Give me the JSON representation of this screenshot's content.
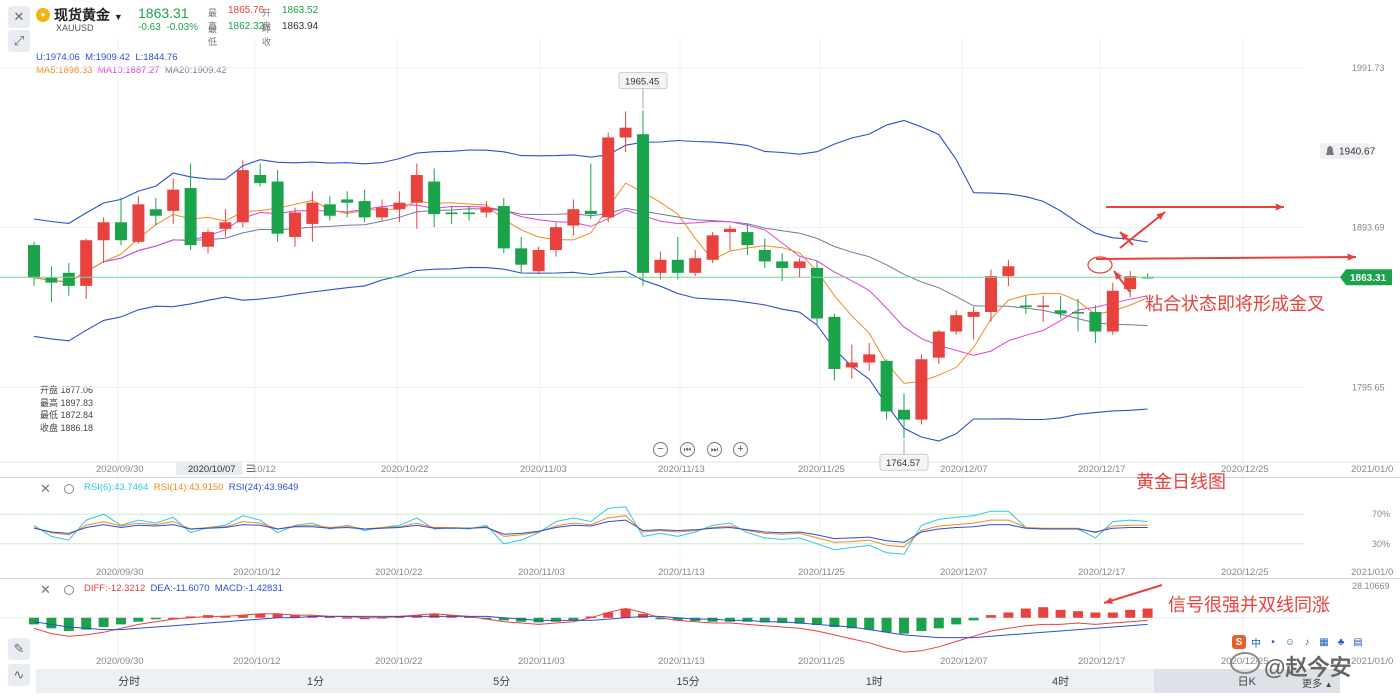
{
  "header": {
    "symbol_name": "现货黄金",
    "symbol_code": "XAUUSD",
    "price": "1863.31",
    "change": "-0.63",
    "change_pct": "-0.03%",
    "high_label": "最高",
    "high": "1865.76",
    "open_label": "开盘",
    "open": "1863.52",
    "low_label": "最低",
    "low": "1862.32",
    "prev_close_label": "昨收",
    "prev_close": "1863.94"
  },
  "indicators": {
    "boll": {
      "u": "U:1974.06",
      "m": "M:1909.42",
      "l": "L:1844.76"
    },
    "ma5": "MA5:1898.33",
    "ma10": "MA10:1887.27",
    "ma20": "MA20:1909.42",
    "rsi6": "RSI(6):43.7464",
    "rsi14": "RSI(14):43.9150",
    "rsi24": "RSI(24):43.9649",
    "diff": "DIFF:-12.3212",
    "dea": "DEA:-11.6070",
    "macd": "MACD:-1.42831"
  },
  "ohlc_box": {
    "open": "开盘 1877.06",
    "high": "最高 1897.83",
    "low": "最低 1872.84",
    "close": "收盘 1886.18"
  },
  "price_axis": {
    "ticks": [
      {
        "value": 1991.73,
        "label": "1991.73"
      },
      {
        "value": 1893.69,
        "label": "1893.69"
      },
      {
        "value": 1795.65,
        "label": "1795.65"
      }
    ],
    "alert_label": "1940.67",
    "current_label": "1863.31"
  },
  "markers": {
    "peak": "1965.45",
    "trough": "1764.57"
  },
  "date_axis": {
    "labels": [
      "2020/09/30",
      "2020/10/07",
      "10/12",
      "2020/10/22",
      "2020/11/03",
      "2020/11/13",
      "2020/11/25",
      "2020/12/07",
      "2020/12/17",
      "2020/12/25",
      "2021/01/0"
    ],
    "sub_labels": [
      "2020/09/30",
      "2020/10/12",
      "2020/10/22",
      "2020/11/03",
      "2020/11/13",
      "2020/11/25",
      "2020/12/07",
      "2020/12/17",
      "2020/12/25",
      "2021/01/0"
    ]
  },
  "rsi_axis": {
    "upper": "70%",
    "lower": "30%"
  },
  "macd_axis": {
    "top": "28.10669"
  },
  "timeframes": [
    "分时",
    "1分",
    "5分",
    "15分",
    "1时",
    "4时",
    "日K"
  ],
  "timeframe_active": "日K",
  "more_label": "更多",
  "annotations": {
    "golden_cross": "粘合状态即将形成金叉",
    "daily_chart": "黄金日线图",
    "signal": "信号很强并双线同涨"
  },
  "watermark": "@赵今安",
  "colors": {
    "up": "#e8423f",
    "down": "#1aa34a",
    "boll": "#2c4fd6",
    "ma5": "#f28a1e",
    "ma10": "#e040d9",
    "ma20": "#6f7d9a",
    "annot": "#e8403a"
  },
  "chart_data": {
    "type": "candlestick",
    "start_date": "2020-09-24",
    "candles": [
      {
        "o": 1883,
        "h": 1885,
        "l": 1858,
        "c": 1863
      },
      {
        "o": 1863,
        "h": 1870,
        "l": 1848,
        "c": 1860
      },
      {
        "o": 1866,
        "h": 1872,
        "l": 1852,
        "c": 1858
      },
      {
        "o": 1858,
        "h": 1887,
        "l": 1850,
        "c": 1886
      },
      {
        "o": 1886,
        "h": 1900,
        "l": 1872,
        "c": 1897
      },
      {
        "o": 1897,
        "h": 1912,
        "l": 1883,
        "c": 1886
      },
      {
        "o": 1885,
        "h": 1913,
        "l": 1884,
        "c": 1908
      },
      {
        "o": 1905,
        "h": 1912,
        "l": 1895,
        "c": 1901
      },
      {
        "o": 1904,
        "h": 1924,
        "l": 1896,
        "c": 1917
      },
      {
        "o": 1918,
        "h": 1933,
        "l": 1880,
        "c": 1883
      },
      {
        "o": 1882,
        "h": 1893,
        "l": 1878,
        "c": 1891
      },
      {
        "o": 1893,
        "h": 1905,
        "l": 1888,
        "c": 1897
      },
      {
        "o": 1897,
        "h": 1935,
        "l": 1894,
        "c": 1929
      },
      {
        "o": 1926,
        "h": 1933,
        "l": 1919,
        "c": 1921
      },
      {
        "o": 1922,
        "h": 1929,
        "l": 1885,
        "c": 1890
      },
      {
        "o": 1888,
        "h": 1906,
        "l": 1882,
        "c": 1903
      },
      {
        "o": 1896,
        "h": 1916,
        "l": 1885,
        "c": 1909
      },
      {
        "o": 1908,
        "h": 1913,
        "l": 1898,
        "c": 1901
      },
      {
        "o": 1911,
        "h": 1916,
        "l": 1900,
        "c": 1909
      },
      {
        "o": 1910,
        "h": 1917,
        "l": 1897,
        "c": 1900
      },
      {
        "o": 1900,
        "h": 1911,
        "l": 1898,
        "c": 1906
      },
      {
        "o": 1905,
        "h": 1916,
        "l": 1897,
        "c": 1909
      },
      {
        "o": 1909,
        "h": 1933,
        "l": 1893,
        "c": 1926
      },
      {
        "o": 1922,
        "h": 1930,
        "l": 1894,
        "c": 1902
      },
      {
        "o": 1903,
        "h": 1907,
        "l": 1896,
        "c": 1902
      },
      {
        "o": 1903,
        "h": 1907,
        "l": 1898,
        "c": 1902
      },
      {
        "o": 1903,
        "h": 1910,
        "l": 1900,
        "c": 1906
      },
      {
        "o": 1907,
        "h": 1912,
        "l": 1878,
        "c": 1881
      },
      {
        "o": 1881,
        "h": 1888,
        "l": 1866,
        "c": 1871
      },
      {
        "o": 1867,
        "h": 1882,
        "l": 1866,
        "c": 1880
      },
      {
        "o": 1880,
        "h": 1897,
        "l": 1876,
        "c": 1894
      },
      {
        "o": 1895,
        "h": 1911,
        "l": 1889,
        "c": 1905
      },
      {
        "o": 1904,
        "h": 1933,
        "l": 1899,
        "c": 1902
      },
      {
        "o": 1900,
        "h": 1952,
        "l": 1897,
        "c": 1949
      },
      {
        "o": 1949,
        "h": 1965,
        "l": 1940,
        "c": 1955
      },
      {
        "o": 1951,
        "h": 1965.45,
        "l": 1858,
        "c": 1866
      },
      {
        "o": 1866,
        "h": 1879,
        "l": 1862,
        "c": 1874
      },
      {
        "o": 1874,
        "h": 1888,
        "l": 1862,
        "c": 1866
      },
      {
        "o": 1866,
        "h": 1880,
        "l": 1864,
        "c": 1875
      },
      {
        "o": 1874,
        "h": 1891,
        "l": 1872,
        "c": 1889
      },
      {
        "o": 1891,
        "h": 1895,
        "l": 1880,
        "c": 1893
      },
      {
        "o": 1891,
        "h": 1896,
        "l": 1877,
        "c": 1883
      },
      {
        "o": 1880,
        "h": 1887,
        "l": 1869,
        "c": 1873
      },
      {
        "o": 1873,
        "h": 1878,
        "l": 1861,
        "c": 1869
      },
      {
        "o": 1869,
        "h": 1875,
        "l": 1863,
        "c": 1873
      },
      {
        "o": 1869,
        "h": 1873,
        "l": 1834,
        "c": 1838
      },
      {
        "o": 1839,
        "h": 1841,
        "l": 1800,
        "c": 1807
      },
      {
        "o": 1808,
        "h": 1822,
        "l": 1801,
        "c": 1811
      },
      {
        "o": 1811,
        "h": 1823,
        "l": 1806,
        "c": 1816
      },
      {
        "o": 1812,
        "h": 1813,
        "l": 1776,
        "c": 1781
      },
      {
        "o": 1782,
        "h": 1792,
        "l": 1764.57,
        "c": 1776
      },
      {
        "o": 1776,
        "h": 1816,
        "l": 1773,
        "c": 1813
      },
      {
        "o": 1814,
        "h": 1831,
        "l": 1810,
        "c": 1830
      },
      {
        "o": 1830,
        "h": 1843,
        "l": 1828,
        "c": 1840
      },
      {
        "o": 1839,
        "h": 1845,
        "l": 1825,
        "c": 1842
      },
      {
        "o": 1842,
        "h": 1868,
        "l": 1836,
        "c": 1864
      },
      {
        "o": 1864,
        "h": 1874,
        "l": 1858,
        "c": 1870
      },
      {
        "o": 1846,
        "h": 1852,
        "l": 1841,
        "c": 1845
      },
      {
        "o": 1845,
        "h": 1852,
        "l": 1836,
        "c": 1846
      },
      {
        "o": 1843,
        "h": 1852,
        "l": 1838,
        "c": 1841
      },
      {
        "o": 1842,
        "h": 1850,
        "l": 1830,
        "c": 1841
      },
      {
        "o": 1842,
        "h": 1846,
        "l": 1823,
        "c": 1830
      },
      {
        "o": 1830,
        "h": 1860,
        "l": 1828,
        "c": 1855
      },
      {
        "o": 1856,
        "h": 1867,
        "l": 1851,
        "c": 1864
      },
      {
        "o": 1863.52,
        "h": 1865.76,
        "l": 1862.32,
        "c": 1863.31
      }
    ],
    "price_range": [
      1750,
      2010
    ],
    "rsi": {
      "range": [
        0,
        100
      ],
      "rsi6": [
        55,
        40,
        35,
        62,
        70,
        55,
        62,
        58,
        66,
        45,
        52,
        55,
        68,
        62,
        45,
        55,
        58,
        50,
        55,
        48,
        52,
        55,
        65,
        50,
        52,
        50,
        55,
        30,
        35,
        45,
        60,
        65,
        60,
        78,
        80,
        40,
        44,
        40,
        46,
        55,
        58,
        45,
        38,
        36,
        38,
        30,
        22,
        25,
        28,
        18,
        16,
        55,
        63,
        66,
        68,
        74,
        74,
        52,
        50,
        50,
        50,
        38,
        60,
        62,
        60
      ],
      "rsi14": [
        52,
        45,
        42,
        55,
        60,
        54,
        58,
        56,
        60,
        50,
        52,
        53,
        60,
        58,
        50,
        54,
        55,
        52,
        54,
        50,
        52,
        53,
        58,
        52,
        52,
        51,
        53,
        40,
        42,
        46,
        54,
        58,
        56,
        65,
        68,
        46,
        48,
        46,
        48,
        52,
        54,
        48,
        44,
        43,
        44,
        38,
        32,
        33,
        35,
        28,
        26,
        48,
        54,
        56,
        58,
        62,
        62,
        52,
        51,
        51,
        51,
        45,
        54,
        55,
        55
      ],
      "rsi24": [
        51,
        46,
        44,
        52,
        56,
        52,
        55,
        54,
        56,
        50,
        51,
        52,
        56,
        55,
        50,
        53,
        53,
        51,
        52,
        50,
        51,
        52,
        55,
        51,
        51,
        51,
        52,
        43,
        44,
        47,
        52,
        55,
        54,
        60,
        62,
        48,
        49,
        48,
        49,
        51,
        52,
        49,
        46,
        45,
        46,
        42,
        37,
        38,
        39,
        34,
        32,
        46,
        50,
        52,
        53,
        56,
        56,
        51,
        50,
        50,
        50,
        46,
        51,
        52,
        52
      ]
    },
    "macd": {
      "range": [
        -32,
        18
      ],
      "bars": [
        -5,
        -8,
        -10,
        -9,
        -7,
        -5,
        -3,
        -1,
        0,
        1,
        2,
        1.5,
        2,
        3,
        3,
        2,
        1.5,
        1,
        0.5,
        0,
        0.5,
        1,
        2,
        3,
        2,
        1,
        -1,
        -2,
        -3,
        -3.5,
        -3,
        -2,
        1,
        4,
        7,
        3,
        -1,
        -2,
        -2.5,
        -3,
        -3,
        -3,
        -3.5,
        -4,
        -4.5,
        -5.5,
        -7,
        -8,
        -9,
        -11,
        -12,
        -10,
        -8,
        -5,
        -2,
        2,
        4,
        7,
        8,
        6,
        5,
        4,
        4,
        6,
        7
      ],
      "diff": [
        -8,
        -12,
        -14,
        -13,
        -11,
        -8,
        -5,
        -3,
        -1,
        0,
        1,
        1,
        2,
        3,
        3,
        2,
        2,
        1,
        1,
        0,
        0,
        1,
        2,
        3,
        2,
        1,
        -1,
        -3,
        -4,
        -5,
        -4,
        -3,
        0,
        4,
        7,
        4,
        0,
        -2,
        -3,
        -4,
        -4,
        -5,
        -6,
        -7,
        -8,
        -10,
        -13,
        -16,
        -19,
        -23,
        -26,
        -25,
        -22,
        -18,
        -14,
        -10,
        -8,
        -6,
        -5,
        -5,
        -4,
        -5,
        -4,
        -3,
        -2
      ],
      "dea": [
        -3,
        -5,
        -7,
        -8,
        -9,
        -9,
        -8,
        -7,
        -6,
        -5,
        -4,
        -3,
        -2,
        -1,
        0,
        0,
        1,
        1,
        1,
        1,
        1,
        1,
        1,
        1,
        1,
        1,
        1,
        0,
        -1,
        -2,
        -2,
        -2,
        -2,
        -1,
        0,
        1,
        1,
        0,
        -1,
        -1,
        -2,
        -2,
        -3,
        -3,
        -4,
        -5,
        -6,
        -7,
        -9,
        -11,
        -13,
        -14,
        -15,
        -15,
        -15,
        -14,
        -13,
        -12,
        -11,
        -10,
        -9,
        -8,
        -7,
        -6,
        -5
      ]
    }
  }
}
